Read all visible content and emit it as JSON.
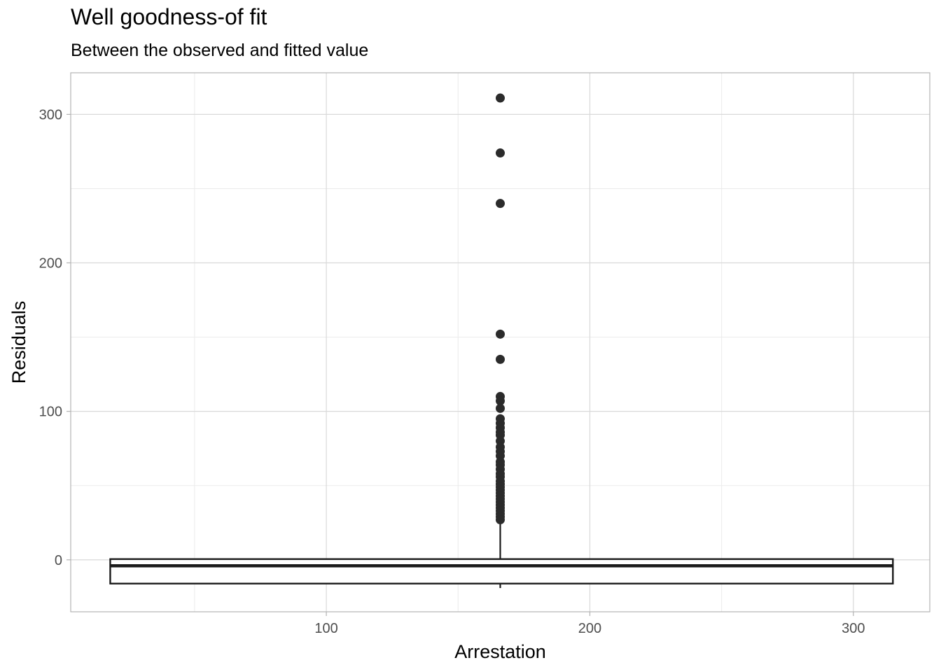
{
  "chart_data": {
    "type": "boxplot",
    "title": "Well goodness-of fit",
    "subtitle": "Between the observed and fitted value",
    "xlabel": "Arrestation",
    "ylabel": "Residuals",
    "xlim": [
      3,
      329
    ],
    "ylim": [
      -35,
      328
    ],
    "x_ticks": [
      100,
      200,
      300
    ],
    "y_ticks": [
      0,
      100,
      200,
      300
    ],
    "x_minor_ticks": [
      50,
      150,
      250
    ],
    "y_minor_ticks": [
      50,
      150,
      250
    ],
    "grid": true,
    "box": {
      "x": 166,
      "x_min": 18,
      "x_max": 315,
      "q1": -16,
      "median": -4,
      "q3": 0.5,
      "whisker_low": -19,
      "whisker_high": 26
    },
    "outliers": [
      311,
      274,
      240,
      152,
      135,
      110,
      107,
      102,
      95,
      92,
      89,
      86,
      84,
      80,
      76,
      73,
      70,
      66,
      64,
      61,
      58,
      56,
      53,
      51,
      49,
      47,
      45,
      43,
      41,
      39,
      37,
      35,
      33,
      31,
      29,
      27
    ],
    "colors": {
      "box_stroke": "#1a1a1a",
      "points": "#2b2b2b",
      "grid_major": "#d9d9d9",
      "grid_minor": "#ebebeb",
      "panel_border": "#b3b3b3",
      "tick_label": "#4d4d4d"
    }
  }
}
